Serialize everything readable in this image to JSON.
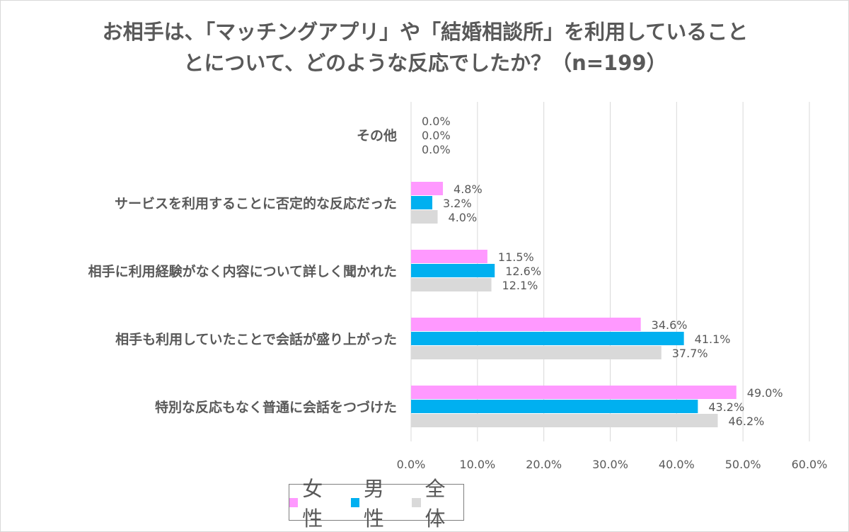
{
  "chart_data": {
    "type": "bar",
    "orientation": "horizontal",
    "title_lines": [
      "お相手は、「マッチングアプリ」や「結婚相談所」を利用していること",
      "とについて、どのような反応でしたか？（n=199）"
    ],
    "categories": [
      "その他",
      "サービスを利用することに否定的な反応だった",
      "相手に利用経験がなく内容について詳しく聞かれた",
      "相手も利用していたことで会話が盛り上がった",
      "特別な反応もなく普通に会話をつづけた"
    ],
    "series": [
      {
        "name": "女性",
        "color": "#FF99FF",
        "values": [
          0.0,
          4.8,
          11.5,
          34.6,
          49.0
        ]
      },
      {
        "name": "男性",
        "color": "#00B0F0",
        "values": [
          0.0,
          3.2,
          12.6,
          41.1,
          43.2
        ]
      },
      {
        "name": "全体",
        "color": "#D9D9D9",
        "values": [
          0.0,
          4.0,
          12.1,
          37.7,
          46.2
        ]
      }
    ],
    "xlim": [
      0,
      60
    ],
    "xticks": [
      "0.0%",
      "10.0%",
      "20.0%",
      "30.0%",
      "40.0%",
      "50.0%",
      "60.0%"
    ],
    "grid": true,
    "legend_position": "bottom-center"
  }
}
